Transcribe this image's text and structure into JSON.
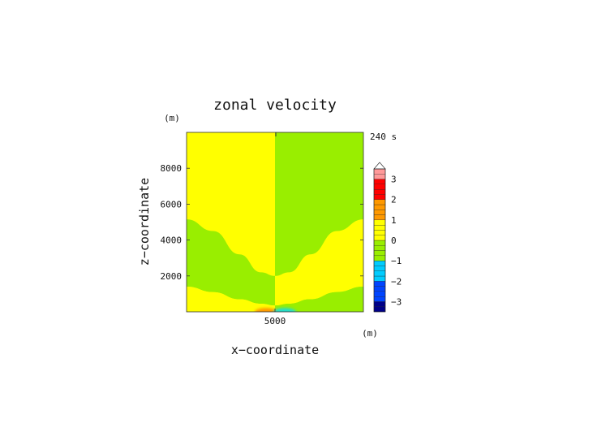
{
  "chart_data": {
    "type": "heatmap",
    "title": "zonal velocity",
    "time_label": "240 s",
    "xlabel": "x−coordinate",
    "ylabel": "z−coordinate",
    "x_unit": "(m)",
    "y_unit": "(m)",
    "xlim": [
      0,
      10000
    ],
    "ylim": [
      0,
      10000
    ],
    "x_ticks": [
      {
        "value": 5000,
        "label": "5000"
      }
    ],
    "y_ticks": [
      {
        "value": 2000,
        "label": "2000"
      },
      {
        "value": 4000,
        "label": "4000"
      },
      {
        "value": 6000,
        "label": "6000"
      },
      {
        "value": 8000,
        "label": "8000"
      }
    ],
    "colorbar": {
      "vmin": -3.5,
      "vmax": 3.5,
      "step": 0.25,
      "extend_top": true,
      "tick_values": [
        3,
        2,
        1,
        0,
        -1,
        -2,
        -3
      ],
      "tick_labels": [
        "3",
        "2",
        "1",
        "0",
        "−1",
        "−2",
        "−3"
      ]
    },
    "colors": {
      "positive_small": "#ffff00",
      "near_zero": "#99ee00",
      "positive_bubble": "#ff9900",
      "negative_bubble": "#22ddcc"
    },
    "regions": {
      "left": {
        "x_range": [
          0,
          5000
        ],
        "upper_band_value": 0.1,
        "middle_band_value": -0.1,
        "bottom_band_value": 0.1,
        "upper_boundary": [
          [
            0,
            5150
          ],
          [
            1500,
            4500
          ],
          [
            3000,
            3200
          ],
          [
            4200,
            2200
          ],
          [
            5000,
            2000
          ]
        ],
        "lower_boundary": [
          [
            0,
            1400
          ],
          [
            1500,
            1100
          ],
          [
            3000,
            700
          ],
          [
            4200,
            450
          ],
          [
            5000,
            350
          ]
        ]
      },
      "right": {
        "x_range": [
          5000,
          10000
        ],
        "upper_band_value": -0.1,
        "middle_band_value": 0.1,
        "bottom_band_value": -0.1,
        "upper_boundary": [
          [
            5000,
            2000
          ],
          [
            5800,
            2200
          ],
          [
            7000,
            3200
          ],
          [
            8500,
            4500
          ],
          [
            10000,
            5150
          ]
        ],
        "lower_boundary": [
          [
            5000,
            350
          ],
          [
            5800,
            450
          ],
          [
            7000,
            700
          ],
          [
            8500,
            1100
          ],
          [
            10000,
            1400
          ]
        ]
      }
    },
    "bubbles": [
      {
        "x": 4500,
        "z": 80,
        "value": 0.8
      },
      {
        "x": 5550,
        "z": 80,
        "value": -0.8
      }
    ]
  }
}
